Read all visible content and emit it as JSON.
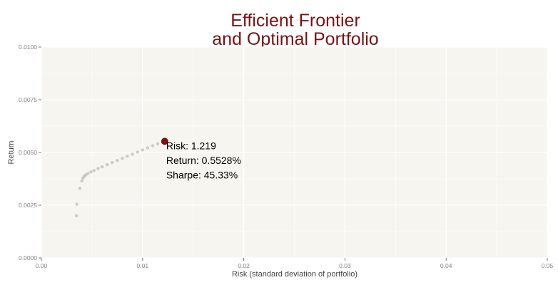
{
  "chart_data": {
    "type": "scatter",
    "title_lines": [
      "Efficient Frontier",
      "and Optimal Portfolio"
    ],
    "xlabel": "Risk (standard deviation of portfolio)",
    "ylabel": "Return",
    "xlim": [
      0,
      0.05
    ],
    "ylim": [
      0,
      0.01
    ],
    "xticks": [
      0,
      0.01,
      0.02,
      0.03,
      0.04,
      0.05
    ],
    "xtick_labels": [
      "0.00",
      "0.01",
      "0.02",
      "0.03",
      "0.04",
      "0.05"
    ],
    "yticks": [
      0,
      0.0025,
      0.005,
      0.0075,
      0.01
    ],
    "ytick_labels": [
      "0.0000",
      "0.0025",
      "0.0050",
      "0.0075",
      "0.0100"
    ],
    "grid": true,
    "frontier_points": [
      [
        0.00347,
        0.002
      ],
      [
        0.0035,
        0.00255
      ],
      [
        0.0038,
        0.0033
      ],
      [
        0.004,
        0.00365
      ],
      [
        0.0041,
        0.00378
      ],
      [
        0.0042,
        0.00385
      ],
      [
        0.0043,
        0.0039
      ],
      [
        0.0044,
        0.00394
      ],
      [
        0.0046,
        0.004
      ],
      [
        0.0049,
        0.00408
      ],
      [
        0.0052,
        0.00415
      ],
      [
        0.0056,
        0.00424
      ],
      [
        0.006,
        0.00432
      ],
      [
        0.0065,
        0.00442
      ],
      [
        0.007,
        0.00452
      ],
      [
        0.0075,
        0.00462
      ],
      [
        0.008,
        0.00472
      ],
      [
        0.0085,
        0.00482
      ],
      [
        0.009,
        0.00492
      ],
      [
        0.0095,
        0.00502
      ],
      [
        0.01,
        0.00512
      ],
      [
        0.0105,
        0.00522
      ],
      [
        0.011,
        0.00532
      ],
      [
        0.0115,
        0.00541
      ],
      [
        0.012,
        0.00548
      ]
    ],
    "optimal_point": {
      "x": 0.01219,
      "y": 0.005528
    },
    "annotation_lines": [
      "Risk: 1.219",
      "Return: 0.5528%",
      "Sharpe: 45.33%"
    ],
    "colors": {
      "title": "#7a1212",
      "optimal_point": "#7a1212",
      "frontier_points": "#c8c6bd",
      "panel_background": "#f6f5f0",
      "grid": "#ffffff"
    }
  }
}
